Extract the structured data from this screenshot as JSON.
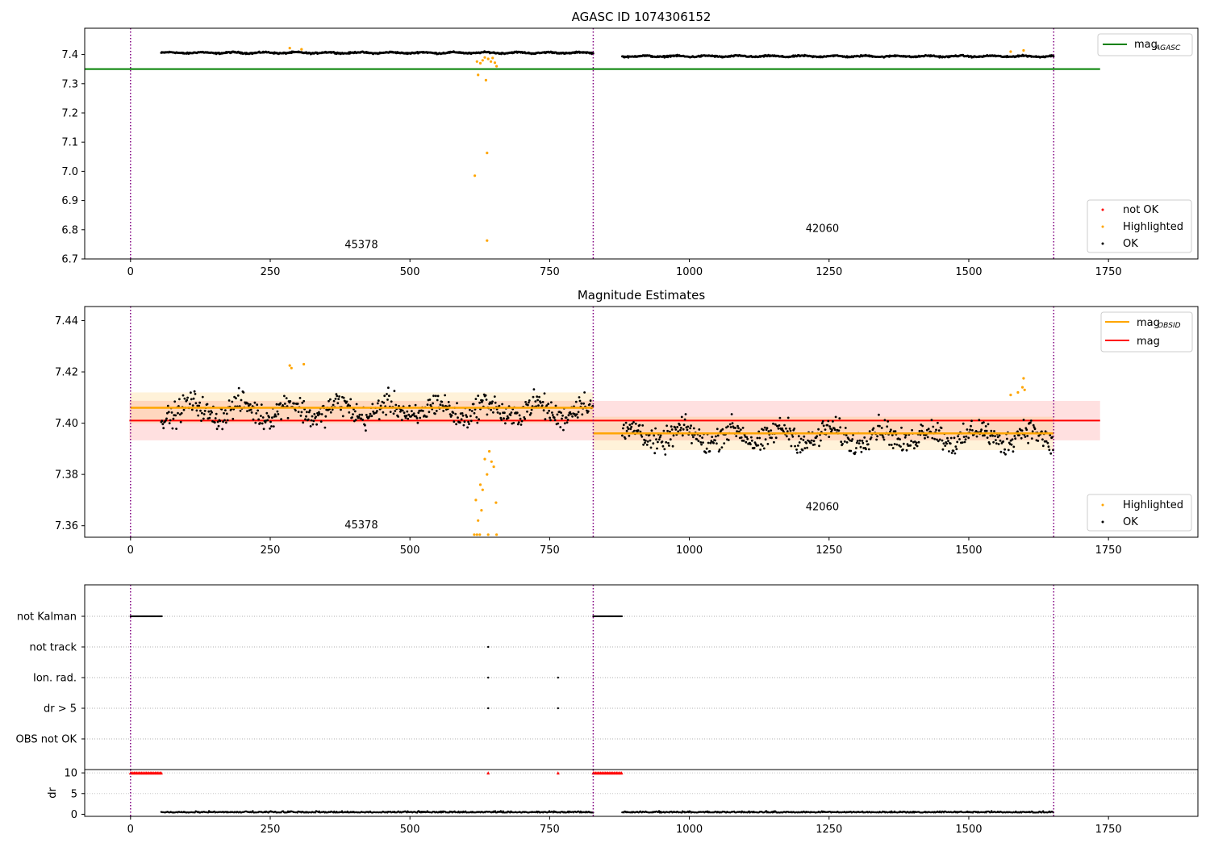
{
  "chart_data": [
    {
      "type": "scatter",
      "title": "AGASC ID 1074306152",
      "xlim": [
        -82,
        1910
      ],
      "ylim": [
        6.7,
        7.49
      ],
      "x_ticks": [
        0,
        250,
        500,
        750,
        1000,
        1250,
        1500,
        1750
      ],
      "y_ticks": [
        6.7,
        6.8,
        6.9,
        7.0,
        7.1,
        7.2,
        7.3,
        7.4
      ],
      "grid": false,
      "vlines": [
        0,
        828,
        1652
      ],
      "obsid_labels": [
        {
          "text": "45378",
          "x": 413,
          "y": 6.737
        },
        {
          "text": "42060",
          "x": 1238,
          "y": 6.793
        }
      ],
      "hlines": [
        {
          "name": "mag_AGASC",
          "y": 7.35,
          "x_range": [
            -82,
            1735
          ],
          "color": "#008000"
        }
      ],
      "segments": [
        {
          "x_range": [
            55,
            828
          ],
          "base": 7.406,
          "amp": 0.004
        },
        {
          "x_range": [
            880,
            1652
          ],
          "base": 7.394,
          "amp": 0.004
        }
      ],
      "highlighted_points": [
        {
          "x": 616,
          "y": 6.985
        },
        {
          "x": 638,
          "y": 7.063
        },
        {
          "x": 638,
          "y": 6.763
        },
        {
          "x": 622,
          "y": 7.33
        },
        {
          "x": 636,
          "y": 7.312
        },
        {
          "x": 626,
          "y": 7.37
        },
        {
          "x": 630,
          "y": 7.38
        },
        {
          "x": 640,
          "y": 7.385
        },
        {
          "x": 645,
          "y": 7.376
        },
        {
          "x": 648,
          "y": 7.388
        },
        {
          "x": 652,
          "y": 7.372
        },
        {
          "x": 655,
          "y": 7.36
        },
        {
          "x": 620,
          "y": 7.376
        },
        {
          "x": 634,
          "y": 7.39
        },
        {
          "x": 285,
          "y": 7.422
        },
        {
          "x": 306,
          "y": 7.418
        },
        {
          "x": 1598,
          "y": 7.414
        },
        {
          "x": 1575,
          "y": 7.41
        }
      ],
      "legend_lines": {
        "position": "upper right",
        "entries": [
          {
            "label": "mag",
            "sub": "AGASC",
            "color": "#008000"
          }
        ]
      },
      "legend_points": {
        "position": "lower right",
        "entries": [
          {
            "label": "not OK",
            "color": "#ff0000"
          },
          {
            "label": "Highlighted",
            "color": "#ffa500"
          },
          {
            "label": "OK",
            "color": "#000000"
          }
        ]
      }
    },
    {
      "type": "scatter",
      "title": "Magnitude Estimates",
      "xlim": [
        -82,
        1910
      ],
      "ylim": [
        7.3555,
        7.4455
      ],
      "x_ticks": [
        0,
        250,
        500,
        750,
        1000,
        1250,
        1500,
        1750
      ],
      "y_ticks": [
        7.36,
        7.38,
        7.4,
        7.42,
        7.44
      ],
      "grid": false,
      "vlines": [
        0,
        828,
        1652
      ],
      "obsid_labels": [
        {
          "text": "45378",
          "x": 413,
          "y": 7.359
        },
        {
          "text": "42060",
          "x": 1238,
          "y": 7.366
        }
      ],
      "mag_band": {
        "value": 7.401,
        "low": 7.3933,
        "high": 7.4087,
        "x_range": [
          -2,
          1735
        ],
        "color": "#ff0000"
      },
      "obsid_levels": [
        {
          "x_range": [
            0,
            828
          ],
          "value": 7.406,
          "low": 7.4,
          "high": 7.412
        },
        {
          "x_range": [
            828,
            1652
          ],
          "value": 7.396,
          "low": 7.3895,
          "high": 7.4025
        }
      ],
      "segments": [
        {
          "x_range": [
            55,
            828
          ],
          "base": 7.405,
          "spread": 0.005
        },
        {
          "x_range": [
            880,
            1652
          ],
          "base": 7.395,
          "spread": 0.005
        }
      ],
      "highlighted_points": [
        {
          "x": 615,
          "y": 7.3565
        },
        {
          "x": 620,
          "y": 7.3565
        },
        {
          "x": 625,
          "y": 7.3565
        },
        {
          "x": 640,
          "y": 7.3565
        },
        {
          "x": 655,
          "y": 7.3565
        },
        {
          "x": 618,
          "y": 7.37
        },
        {
          "x": 622,
          "y": 7.362
        },
        {
          "x": 626,
          "y": 7.376
        },
        {
          "x": 630,
          "y": 7.374
        },
        {
          "x": 634,
          "y": 7.386
        },
        {
          "x": 638,
          "y": 7.38
        },
        {
          "x": 642,
          "y": 7.389
        },
        {
          "x": 646,
          "y": 7.385
        },
        {
          "x": 650,
          "y": 7.383
        },
        {
          "x": 654,
          "y": 7.369
        },
        {
          "x": 628,
          "y": 7.366
        },
        {
          "x": 285,
          "y": 7.4225
        },
        {
          "x": 288,
          "y": 7.4215
        },
        {
          "x": 310,
          "y": 7.423
        },
        {
          "x": 1575,
          "y": 7.411
        },
        {
          "x": 1588,
          "y": 7.412
        },
        {
          "x": 1596,
          "y": 7.414
        },
        {
          "x": 1598,
          "y": 7.4175
        },
        {
          "x": 1600,
          "y": 7.413
        }
      ],
      "legend_lines": {
        "position": "upper right",
        "entries": [
          {
            "label": "mag",
            "sub": "OBSID",
            "color": "#ffa500"
          },
          {
            "label": "mag",
            "sub": "",
            "color": "#ff0000"
          }
        ]
      },
      "legend_points": {
        "position": "lower right",
        "entries": [
          {
            "label": "Highlighted",
            "color": "#ffa500"
          },
          {
            "label": "OK",
            "color": "#000000"
          }
        ]
      }
    },
    {
      "type": "scatter",
      "xlim": [
        -82,
        1910
      ],
      "flag_categories": [
        "not Kalman",
        "not track",
        "Ion. rad.",
        "dr > 5",
        "OBS not OK"
      ],
      "flags": {
        "not Kalman": {
          "x_ranges": [
            [
              0,
              57
            ],
            [
              828,
              880
            ]
          ],
          "points": []
        },
        "not track": {
          "x_ranges": [],
          "points": [
            640
          ]
        },
        "Ion. rad.": {
          "x_ranges": [],
          "points": [
            640,
            765
          ]
        },
        "dr > 5": {
          "x_ranges": [],
          "points": [
            640,
            765
          ]
        },
        "OBS not OK": {
          "x_ranges": [],
          "points": []
        }
      },
      "vlines": [
        0,
        828,
        1652
      ],
      "grid": true
    },
    {
      "type": "scatter",
      "xlim": [
        -82,
        1910
      ],
      "ylim": [
        -0.5,
        10.8
      ],
      "ylabel": "dr",
      "x_ticks": [
        0,
        250,
        500,
        750,
        1000,
        1250,
        1500,
        1750
      ],
      "y_ticks": [
        0,
        5,
        10
      ],
      "threshold_markers": {
        "y": 10,
        "x_ranges": [
          [
            0,
            57
          ],
          [
            828,
            880
          ]
        ],
        "points": [
          640,
          765
        ],
        "color": "#ff0000"
      },
      "segments": [
        {
          "x_range": [
            55,
            828
          ],
          "base": 0.4
        },
        {
          "x_range": [
            880,
            1652
          ],
          "base": 0.4
        }
      ],
      "vlines": [
        0,
        828,
        1652
      ]
    }
  ]
}
